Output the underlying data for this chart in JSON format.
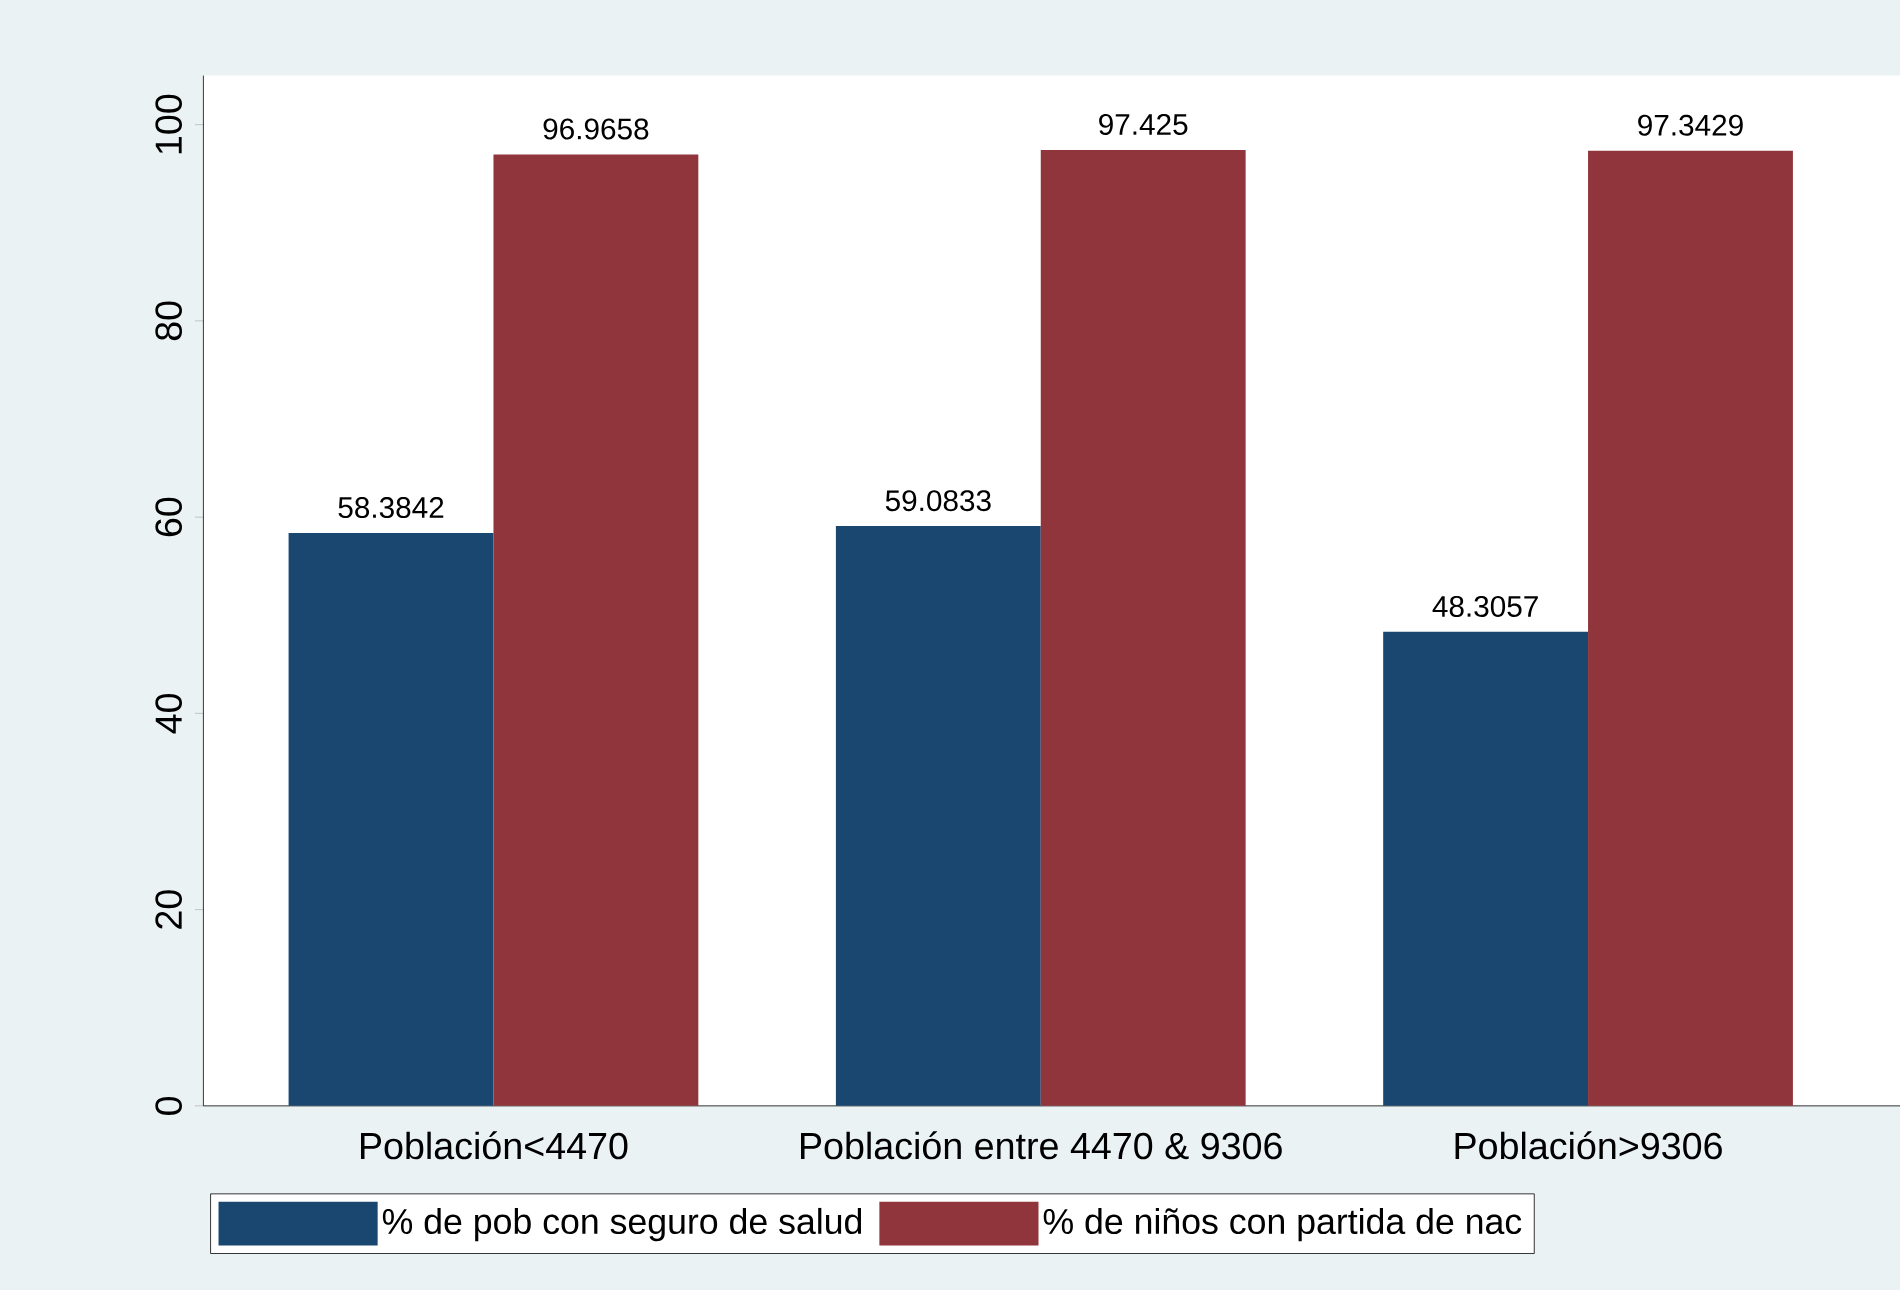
{
  "chart_data": {
    "type": "bar",
    "categories": [
      "Población<4470",
      "Población entre 4470 & 9306",
      "Población>9306"
    ],
    "series": [
      {
        "name": "% de pob con seguro de salud",
        "color": "#1a476f",
        "values": [
          58.3842,
          59.0833,
          48.3057
        ]
      },
      {
        "name": "% de niños con partida de nac",
        "color": "#90353b",
        "values": [
          96.9658,
          97.425,
          97.3429
        ]
      }
    ],
    "ylim": [
      0,
      105
    ],
    "yticks": [
      0,
      20,
      40,
      60,
      80,
      100
    ],
    "data_labels": true,
    "legend": "bottom"
  }
}
